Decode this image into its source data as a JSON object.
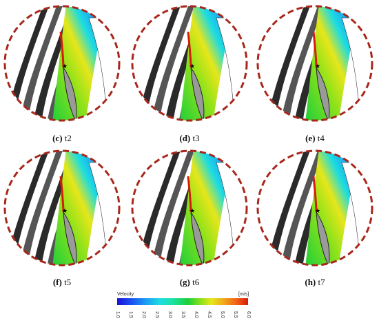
{
  "panels": [
    {
      "label": "(c)",
      "time": "t2"
    },
    {
      "label": "(d)",
      "time": "t3"
    },
    {
      "label": "(e)",
      "time": "t4"
    },
    {
      "label": "(f)",
      "time": "t5"
    },
    {
      "label": "(g)",
      "time": "t6"
    },
    {
      "label": "(h)",
      "time": "t7"
    }
  ],
  "colorbar": {
    "title": "Velocity",
    "unit": "[m/s]",
    "ticks": [
      "1.0",
      "1.5",
      "2.0",
      "2.5",
      "3.0",
      "3.5",
      "4.0",
      "4.5",
      "5.0",
      "5.5",
      "6.0"
    ],
    "range": [
      1.0,
      6.0
    ],
    "colors": [
      "#1a10d8",
      "#1c9df5",
      "#1ddde0",
      "#1ccf3a",
      "#e6e61a",
      "#ef5a15",
      "#d81a0c"
    ]
  },
  "colors": {
    "circle_border": "#a8271a",
    "blade_dark": "#2a2a2a",
    "background": "#ffffff"
  }
}
